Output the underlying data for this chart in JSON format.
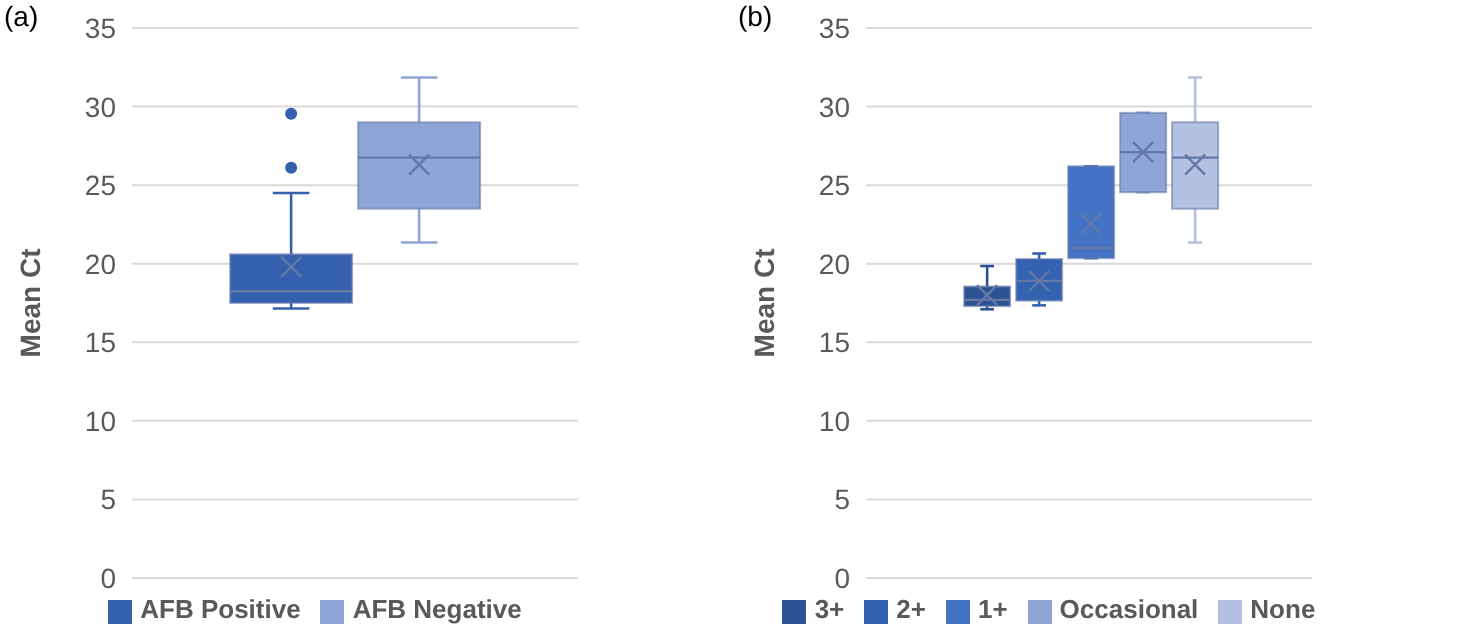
{
  "chart_data": [
    {
      "type": "box",
      "title": "(a)",
      "ylabel": "Mean Ct",
      "categories": [
        null
      ],
      "ylim": [
        0,
        35
      ],
      "yticks": [
        0,
        5,
        10,
        15,
        20,
        25,
        30,
        35
      ],
      "grid": "y",
      "legend": "bottom",
      "tick_labels": "y",
      "series": [
        {
          "name": "AFB Positive",
          "color": "#3560ad",
          "boxes": [
            {
              "low": 17.15,
              "q1": 17.5,
              "median": 18.25,
              "q3": 20.6,
              "high": 24.5,
              "mean": 19.8,
              "outliers": [
                26.1,
                29.55
              ]
            }
          ]
        },
        {
          "name": "AFB Negative",
          "color": "#8fa5d6",
          "boxes": [
            {
              "low": 21.35,
              "q1": 23.5,
              "median": 26.75,
              "q3": 29.0,
              "high": 31.85,
              "mean": 26.3
            }
          ]
        }
      ]
    },
    {
      "type": "box",
      "title": "(b)",
      "ylabel": "Mean Ct",
      "categories": [
        null
      ],
      "ylim": [
        0,
        35
      ],
      "yticks": [
        0,
        5,
        10,
        15,
        20,
        25,
        30,
        35
      ],
      "grid": "y",
      "legend": "bottom",
      "tick_labels": "y",
      "series": [
        {
          "name": "3+",
          "color": "#2d5294",
          "boxes": [
            {
              "low": 17.1,
              "q1": 17.3,
              "median": 17.7,
              "q3": 18.55,
              "high": 19.85,
              "mean": 18.0
            }
          ]
        },
        {
          "name": "2+",
          "color": "#3462b0",
          "boxes": [
            {
              "low": 17.35,
              "q1": 17.65,
              "median": 18.9,
              "q3": 20.3,
              "high": 20.65,
              "mean": 18.9
            }
          ]
        },
        {
          "name": "1+",
          "color": "#4472c4",
          "boxes": [
            {
              "low": 20.35,
              "q1": 20.35,
              "median": 21.0,
              "q3": 26.2,
              "high": 26.2,
              "mean": 22.55
            }
          ]
        },
        {
          "name": "Occasional",
          "color": "#8fa5d6",
          "boxes": [
            {
              "low": 24.55,
              "q1": 24.55,
              "median": 27.1,
              "q3": 29.6,
              "high": 29.6,
              "mean": 27.1
            }
          ]
        },
        {
          "name": "None",
          "color": "#b4c1e3",
          "boxes": [
            {
              "low": 21.35,
              "q1": 23.5,
              "median": 26.75,
              "q3": 29.0,
              "high": 31.85,
              "mean": 26.3
            }
          ]
        }
      ]
    }
  ]
}
